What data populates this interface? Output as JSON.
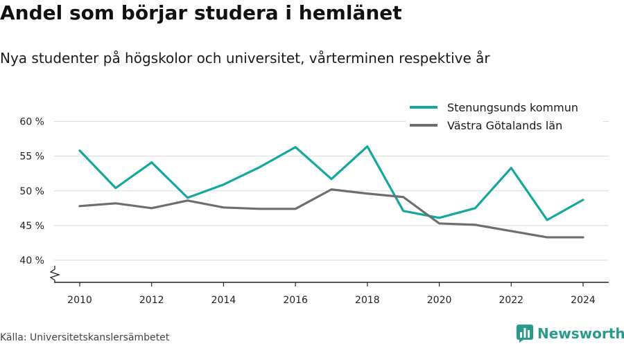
{
  "title": "Andel som börjar studera i hemlänet",
  "subtitle": "Nya studenter på högskolor och universitet, vårterminen respektive år",
  "source": "Källa: Universitetskanslersämbetet",
  "brand": {
    "name": "Newsworthy",
    "icon": "bar-chart-logo-icon",
    "color": "#2a9a8d"
  },
  "chart_data": {
    "type": "line",
    "x": [
      2010,
      2011,
      2012,
      2013,
      2014,
      2015,
      2016,
      2017,
      2018,
      2019,
      2020,
      2021,
      2022,
      2023,
      2024
    ],
    "x_ticks": [
      2010,
      2012,
      2014,
      2016,
      2018,
      2020,
      2022,
      2024
    ],
    "x_tick_labels": [
      "2010",
      "2012",
      "2014",
      "2016",
      "2018",
      "2020",
      "2022",
      "2024"
    ],
    "y_ticks": [
      40,
      45,
      50,
      55,
      60
    ],
    "y_tick_labels": [
      "40 %",
      "45 %",
      "50 %",
      "55 %",
      "60 %"
    ],
    "ylim": [
      36.5,
      60
    ],
    "y_axis_break": true,
    "grid": true,
    "legend_position": "top-right",
    "series": [
      {
        "name": "Stenungsunds kommun",
        "color": "#13a89e",
        "values": [
          55.8,
          50.4,
          54.1,
          49.0,
          50.9,
          53.4,
          56.3,
          51.7,
          56.4,
          47.1,
          46.1,
          47.5,
          53.3,
          45.8,
          48.7
        ]
      },
      {
        "name": "Västra Götalands län",
        "color": "#6e6e72",
        "values": [
          47.8,
          48.2,
          47.5,
          48.6,
          47.6,
          47.4,
          47.4,
          50.2,
          49.6,
          49.1,
          45.3,
          45.1,
          44.2,
          43.3,
          43.3
        ]
      }
    ]
  }
}
